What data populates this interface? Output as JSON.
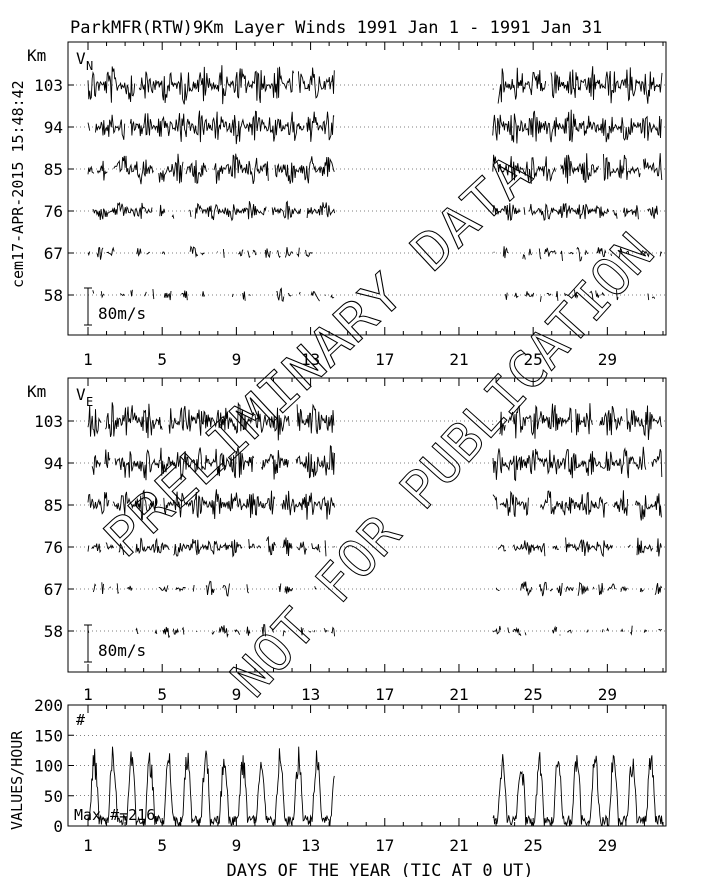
{
  "title": "ParkMFR(RTW)9Km Layer Winds 1991 Jan  1 - 1991 Jan 31",
  "side_label": "cem17-APR-2015 15:48:42",
  "xlabel": "DAYS OF THE YEAR (TIC AT 0 UT)",
  "watermark": {
    "line1": "PRELIMINARY DATA",
    "line2": "NOT FOR PUBLICATION"
  },
  "colors": {
    "ink": "#000000",
    "grid": "#000000",
    "background": "#ffffff"
  },
  "chart_data": [
    {
      "type": "line",
      "panel": "north",
      "component_label": "V",
      "component_sub": "N",
      "ylabel": "Km",
      "scale_bar_label": "80m/s",
      "scale_bar_ms": 80,
      "x_range": [
        1,
        32
      ],
      "x_ticks": [
        1,
        5,
        9,
        13,
        17,
        21,
        25,
        29
      ],
      "y_ticks": [
        103,
        94,
        85,
        76,
        67,
        58
      ],
      "data_gap_days": [
        14.3,
        22.8
      ],
      "grid": true
    },
    {
      "type": "line",
      "panel": "east",
      "component_label": "V",
      "component_sub": "E",
      "ylabel": "Km",
      "scale_bar_label": "80m/s",
      "scale_bar_ms": 80,
      "x_range": [
        1,
        32
      ],
      "x_ticks": [
        1,
        5,
        9,
        13,
        17,
        21,
        25,
        29
      ],
      "y_ticks": [
        103,
        94,
        85,
        76,
        67,
        58
      ],
      "data_gap_days": [
        14.3,
        22.8
      ],
      "grid": true
    },
    {
      "type": "line",
      "panel": "count",
      "ylabel": "VALUES/HOUR",
      "marker_label": "#",
      "max_label": "Max #=216",
      "x_range": [
        1,
        32
      ],
      "x_ticks": [
        1,
        5,
        9,
        13,
        17,
        21,
        25,
        29
      ],
      "ylim": [
        0,
        200
      ],
      "y_ticks": [
        0,
        50,
        100,
        150,
        200
      ],
      "data_gap_days": [
        14.3,
        22.8
      ],
      "grid": true
    }
  ]
}
